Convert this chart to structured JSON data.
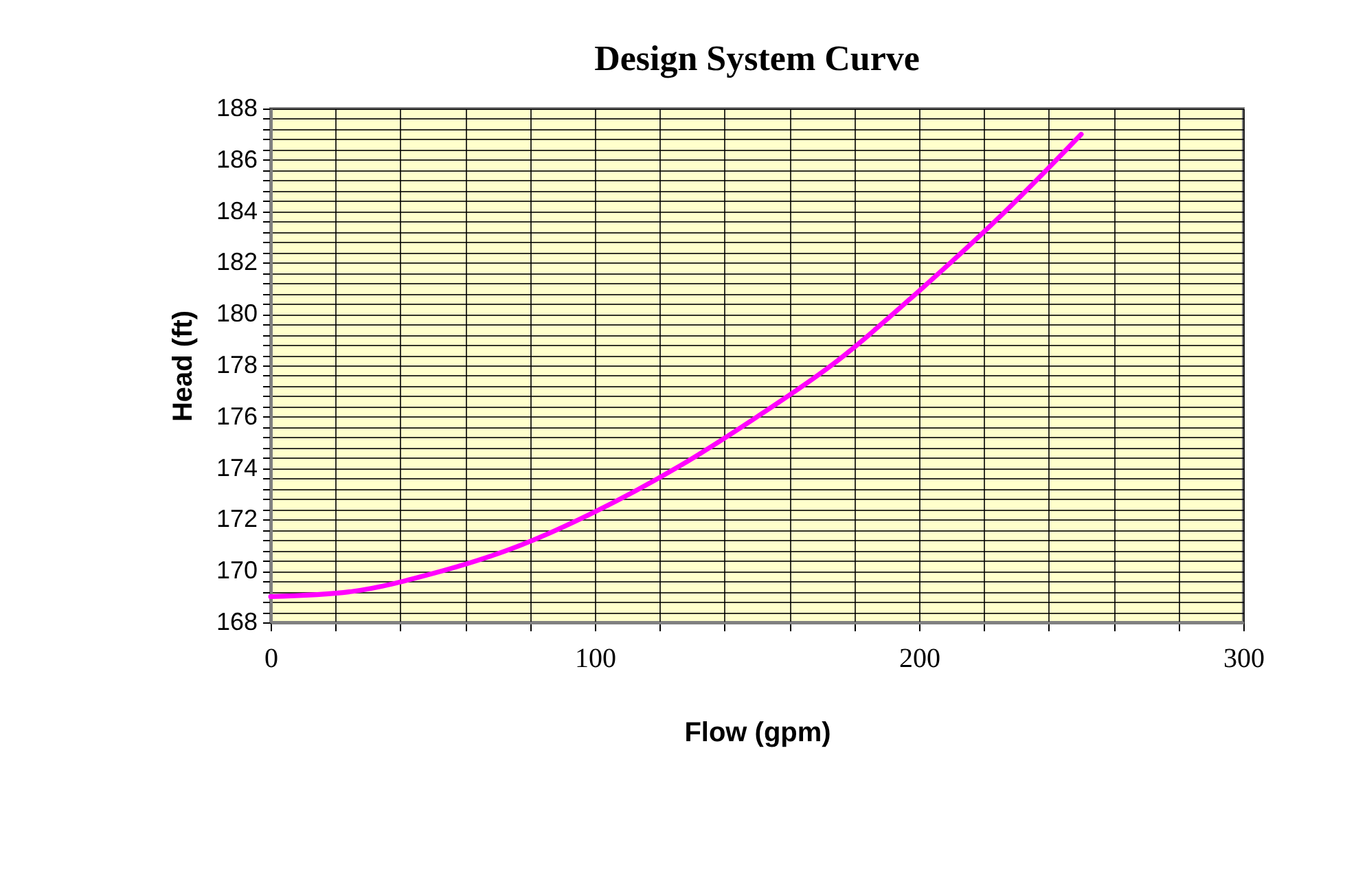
{
  "chart_data": {
    "type": "line",
    "title": "Design System Curve",
    "xlabel": "Flow (gpm)",
    "ylabel": "Head (ft)",
    "x": [
      0,
      25,
      50,
      75,
      100,
      125,
      150,
      175,
      200,
      225,
      250
    ],
    "series": [
      {
        "color": "#ff00ff",
        "values": [
          169.0,
          169.2,
          169.9,
          170.9,
          172.3,
          174.0,
          176.0,
          178.2,
          180.9,
          183.8,
          187.0
        ]
      }
    ],
    "xlim": [
      0,
      300
    ],
    "ylim": [
      168,
      188
    ],
    "xticks": [
      0,
      {
        "value": 20,
        "label": null
      },
      {
        "value": 40,
        "label": null
      },
      {
        "value": 60,
        "label": null
      },
      {
        "value": 80,
        "label": null
      },
      100,
      {
        "value": 120,
        "label": null
      },
      {
        "value": 140,
        "label": null
      },
      {
        "value": 160,
        "label": null
      },
      {
        "value": 180,
        "label": null
      },
      200,
      {
        "value": 220,
        "label": null
      },
      {
        "value": 240,
        "label": null
      },
      {
        "value": 260,
        "label": null
      },
      {
        "value": 280,
        "label": null
      },
      300
    ],
    "yticks": [
      168,
      {
        "value": 168.4,
        "label": null
      },
      {
        "value": 168.8,
        "label": null
      },
      {
        "value": 169.2,
        "label": null
      },
      {
        "value": 169.6,
        "label": null
      },
      170,
      {
        "value": 170.4,
        "label": null
      },
      {
        "value": 170.8,
        "label": null
      },
      {
        "value": 171.2,
        "label": null
      },
      {
        "value": 171.6,
        "label": null
      },
      172,
      {
        "value": 172.4,
        "label": null
      },
      {
        "value": 172.8,
        "label": null
      },
      {
        "value": 173.2,
        "label": null
      },
      {
        "value": 173.6,
        "label": null
      },
      174,
      {
        "value": 174.4,
        "label": null
      },
      {
        "value": 174.8,
        "label": null
      },
      {
        "value": 175.2,
        "label": null
      },
      {
        "value": 175.6,
        "label": null
      },
      176,
      {
        "value": 176.4,
        "label": null
      },
      {
        "value": 176.8,
        "label": null
      },
      {
        "value": 177.2,
        "label": null
      },
      {
        "value": 177.6,
        "label": null
      },
      178,
      {
        "value": 178.4,
        "label": null
      },
      {
        "value": 178.8,
        "label": null
      },
      {
        "value": 179.2,
        "label": null
      },
      {
        "value": 179.6,
        "label": null
      },
      180,
      {
        "value": 180.4,
        "label": null
      },
      {
        "value": 180.8,
        "label": null
      },
      {
        "value": 181.2,
        "label": null
      },
      {
        "value": 181.6,
        "label": null
      },
      182,
      {
        "value": 182.4,
        "label": null
      },
      {
        "value": 182.8,
        "label": null
      },
      {
        "value": 183.2,
        "label": null
      },
      {
        "value": 183.6,
        "label": null
      },
      184,
      {
        "value": 184.4,
        "label": null
      },
      {
        "value": 184.8,
        "label": null
      },
      {
        "value": 185.2,
        "label": null
      },
      {
        "value": 185.6,
        "label": null
      },
      186,
      {
        "value": 186.4,
        "label": null
      },
      {
        "value": 186.8,
        "label": null
      },
      {
        "value": 187.2,
        "label": null
      },
      {
        "value": 187.6,
        "label": null
      },
      188
    ],
    "grid": true,
    "marker": "none",
    "line_style": "solid"
  }
}
